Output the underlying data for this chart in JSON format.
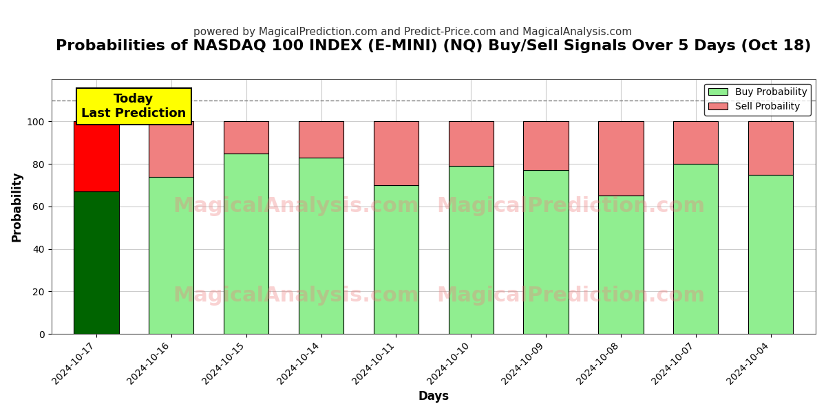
{
  "title": "Probabilities of NASDAQ 100 INDEX (E-MINI) (NQ) Buy/Sell Signals Over 5 Days (Oct 18)",
  "subtitle": "powered by MagicalPrediction.com and Predict-Price.com and MagicalAnalysis.com",
  "xlabel": "Days",
  "ylabel": "Probability",
  "dates": [
    "2024-10-17",
    "2024-10-16",
    "2024-10-15",
    "2024-10-14",
    "2024-10-11",
    "2024-10-10",
    "2024-10-09",
    "2024-10-08",
    "2024-10-07",
    "2024-10-04"
  ],
  "buy_probs": [
    67,
    74,
    85,
    83,
    70,
    79,
    77,
    65,
    80,
    75
  ],
  "sell_probs": [
    33,
    26,
    15,
    17,
    30,
    21,
    23,
    35,
    20,
    25
  ],
  "bar_colors_buy": [
    "#006400",
    "#90EE90",
    "#90EE90",
    "#90EE90",
    "#90EE90",
    "#90EE90",
    "#90EE90",
    "#90EE90",
    "#90EE90",
    "#90EE90"
  ],
  "bar_colors_sell": [
    "#FF0000",
    "#F08080",
    "#F08080",
    "#F08080",
    "#F08080",
    "#F08080",
    "#F08080",
    "#F08080",
    "#F08080",
    "#F08080"
  ],
  "ylim": [
    0,
    120
  ],
  "yticks": [
    0,
    20,
    40,
    60,
    80,
    100
  ],
  "dashed_line_y": 110,
  "today_label": "Today\nLast Prediction",
  "today_box_color": "#FFFF00",
  "today_box_edgecolor": "#000000",
  "watermark1": "MagicalAnalysis.com",
  "watermark2": "MagicalPrediction.com",
  "legend_buy": "Buy Probability",
  "legend_sell": "Sell Probaility",
  "bg_color": "#FFFFFF",
  "grid_color": "#CCCCCC",
  "title_fontsize": 16,
  "subtitle_fontsize": 11,
  "bar_width": 0.6,
  "edgecolor": "#000000"
}
